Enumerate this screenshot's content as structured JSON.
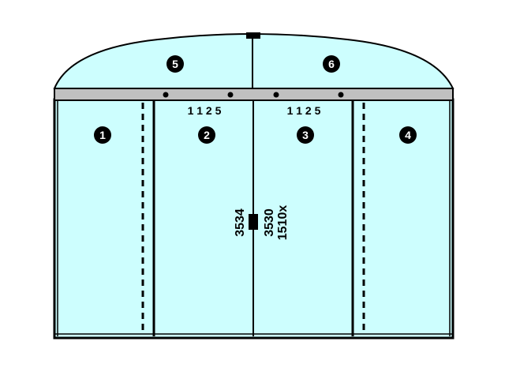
{
  "colors": {
    "glass": "#cdfefe",
    "rail": "#c0c0c0",
    "frame": "#000000",
    "badge": "#000000",
    "badge_text": "#ffffff",
    "background": "#ffffff"
  },
  "panels": [
    {
      "number": "1",
      "type": "fixed"
    },
    {
      "number": "2",
      "type": "sliding"
    },
    {
      "number": "3",
      "type": "sliding"
    },
    {
      "number": "4",
      "type": "fixed"
    }
  ],
  "transoms": [
    {
      "number": "5"
    },
    {
      "number": "6"
    }
  ],
  "dimensions": {
    "leaf_width_left": "1 1 2 5",
    "leaf_width_right": "1 1 2 5",
    "height_left": "3534",
    "height_right": "3530",
    "width_total": "1510x"
  }
}
